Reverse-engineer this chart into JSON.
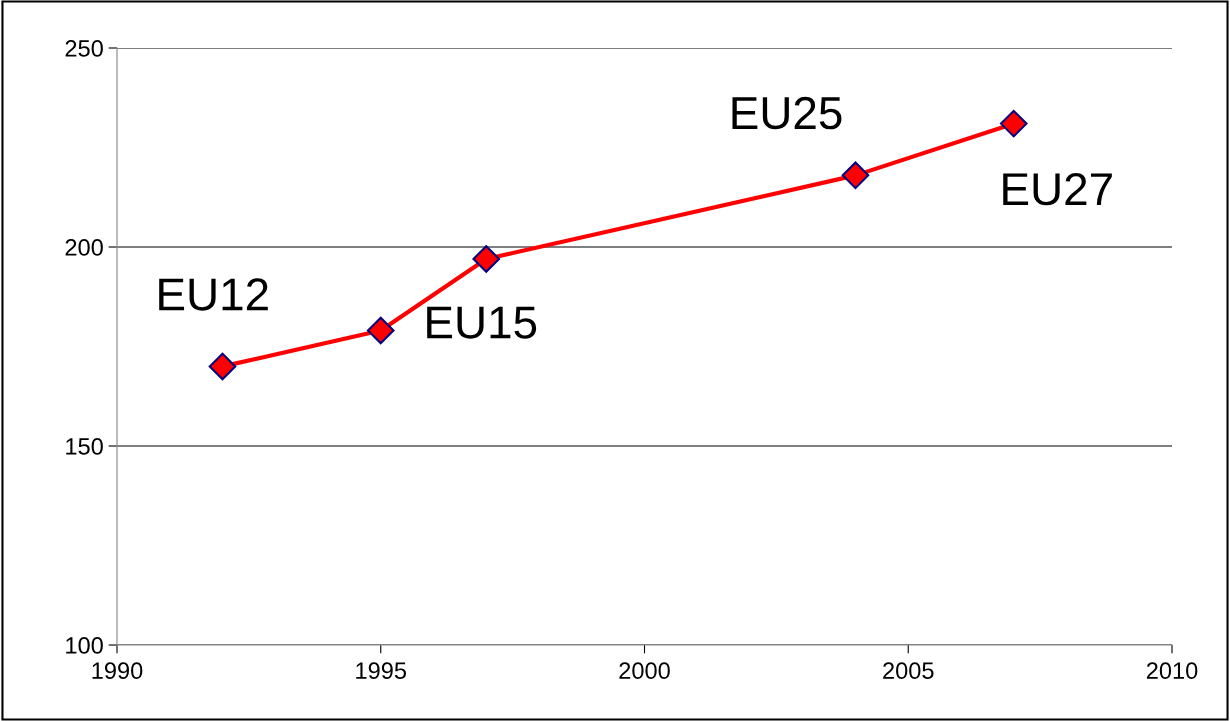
{
  "chart_data": {
    "type": "line",
    "x": [
      1992,
      1995,
      1997,
      2004,
      2007
    ],
    "series": [
      {
        "color": "#ff0000",
        "values": [
          170,
          179,
          197,
          218,
          231
        ]
      }
    ],
    "xlim": [
      1990,
      2010
    ],
    "xticks": [
      1990,
      1995,
      2000,
      2005,
      2010
    ],
    "ylim": [
      100,
      250
    ],
    "yticks": [
      100,
      150,
      200,
      250
    ],
    "grid": "y",
    "marker": "diamond",
    "line_style": "solid",
    "annotations": [
      {
        "text": "EU12",
        "x": 1992,
        "y": 170
      },
      {
        "text": "EU15",
        "x": 1995,
        "y": 179
      },
      {
        "text": "EU25",
        "x": 2004,
        "y": 218
      },
      {
        "text": "EU27",
        "x": 2007,
        "y": 231
      }
    ]
  }
}
